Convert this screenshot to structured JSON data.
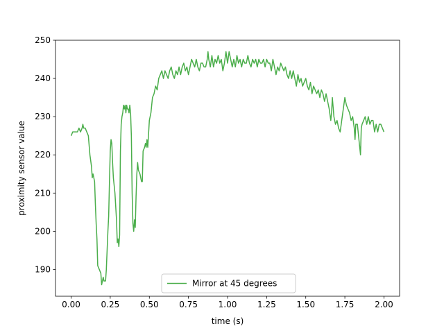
{
  "chart_data": {
    "type": "line",
    "title": "",
    "xlabel": "time (s)",
    "ylabel": "proximity sensor value",
    "xlim": [
      -0.1,
      2.1
    ],
    "ylim": [
      183,
      250
    ],
    "xticks": [
      0.0,
      0.25,
      0.5,
      0.75,
      1.0,
      1.25,
      1.5,
      1.75,
      2.0
    ],
    "xtick_labels": [
      "0.00",
      "0.25",
      "0.50",
      "0.75",
      "1.00",
      "1.25",
      "1.50",
      "1.75",
      "2.00"
    ],
    "yticks": [
      190,
      200,
      210,
      220,
      230,
      240,
      250
    ],
    "ytick_labels": [
      "190",
      "200",
      "210",
      "220",
      "230",
      "240",
      "250"
    ],
    "grid": false,
    "legend_position": "lower center",
    "series": [
      {
        "name": "Mirror at 45 degrees",
        "color": "#2ca02c",
        "points": [
          [
            0.0,
            225
          ],
          [
            0.01,
            226
          ],
          [
            0.02,
            226
          ],
          [
            0.03,
            226
          ],
          [
            0.04,
            226
          ],
          [
            0.05,
            227
          ],
          [
            0.06,
            226
          ],
          [
            0.07,
            227
          ],
          [
            0.075,
            228
          ],
          [
            0.08,
            227
          ],
          [
            0.09,
            227
          ],
          [
            0.1,
            226
          ],
          [
            0.11,
            225
          ],
          [
            0.12,
            220
          ],
          [
            0.13,
            217
          ],
          [
            0.135,
            214
          ],
          [
            0.14,
            215
          ],
          [
            0.15,
            213
          ],
          [
            0.155,
            207
          ],
          [
            0.16,
            202
          ],
          [
            0.165,
            198
          ],
          [
            0.17,
            191
          ],
          [
            0.18,
            190
          ],
          [
            0.19,
            189
          ],
          [
            0.195,
            186
          ],
          [
            0.2,
            187
          ],
          [
            0.205,
            188
          ],
          [
            0.21,
            187
          ],
          [
            0.22,
            187
          ],
          [
            0.225,
            190
          ],
          [
            0.23,
            195
          ],
          [
            0.235,
            200
          ],
          [
            0.24,
            204
          ],
          [
            0.245,
            213
          ],
          [
            0.25,
            221
          ],
          [
            0.255,
            224
          ],
          [
            0.26,
            223
          ],
          [
            0.265,
            218
          ],
          [
            0.27,
            214
          ],
          [
            0.28,
            210
          ],
          [
            0.29,
            203
          ],
          [
            0.295,
            197
          ],
          [
            0.3,
            198
          ],
          [
            0.305,
            196
          ],
          [
            0.31,
            199
          ],
          [
            0.315,
            221
          ],
          [
            0.32,
            228
          ],
          [
            0.325,
            230
          ],
          [
            0.33,
            231
          ],
          [
            0.335,
            233
          ],
          [
            0.34,
            232
          ],
          [
            0.345,
            233
          ],
          [
            0.35,
            231
          ],
          [
            0.355,
            233
          ],
          [
            0.36,
            232
          ],
          [
            0.365,
            232
          ],
          [
            0.37,
            231
          ],
          [
            0.375,
            233
          ],
          [
            0.38,
            231
          ],
          [
            0.385,
            225
          ],
          [
            0.39,
            210
          ],
          [
            0.395,
            202
          ],
          [
            0.4,
            200
          ],
          [
            0.405,
            203
          ],
          [
            0.41,
            201
          ],
          [
            0.415,
            209
          ],
          [
            0.42,
            215
          ],
          [
            0.425,
            218
          ],
          [
            0.43,
            216
          ],
          [
            0.44,
            215
          ],
          [
            0.45,
            213
          ],
          [
            0.455,
            213
          ],
          [
            0.46,
            221
          ],
          [
            0.47,
            222
          ],
          [
            0.475,
            223
          ],
          [
            0.48,
            222
          ],
          [
            0.485,
            224
          ],
          [
            0.49,
            222
          ],
          [
            0.5,
            229
          ],
          [
            0.51,
            231
          ],
          [
            0.52,
            235
          ],
          [
            0.53,
            236
          ],
          [
            0.54,
            238
          ],
          [
            0.55,
            237
          ],
          [
            0.56,
            240
          ],
          [
            0.57,
            241
          ],
          [
            0.58,
            242
          ],
          [
            0.59,
            240
          ],
          [
            0.6,
            242
          ],
          [
            0.62,
            240
          ],
          [
            0.63,
            242
          ],
          [
            0.64,
            243
          ],
          [
            0.65,
            241
          ],
          [
            0.66,
            240
          ],
          [
            0.67,
            242
          ],
          [
            0.68,
            241
          ],
          [
            0.69,
            243
          ],
          [
            0.7,
            241
          ],
          [
            0.71,
            243
          ],
          [
            0.72,
            244
          ],
          [
            0.73,
            242
          ],
          [
            0.74,
            243
          ],
          [
            0.75,
            241
          ],
          [
            0.76,
            243
          ],
          [
            0.77,
            245
          ],
          [
            0.78,
            244
          ],
          [
            0.79,
            243
          ],
          [
            0.8,
            245
          ],
          [
            0.81,
            243
          ],
          [
            0.82,
            242
          ],
          [
            0.83,
            244
          ],
          [
            0.84,
            244
          ],
          [
            0.85,
            243
          ],
          [
            0.86,
            243
          ],
          [
            0.87,
            245
          ],
          [
            0.875,
            247
          ],
          [
            0.88,
            245
          ],
          [
            0.89,
            243
          ],
          [
            0.9,
            246
          ],
          [
            0.91,
            243
          ],
          [
            0.92,
            245
          ],
          [
            0.93,
            244
          ],
          [
            0.94,
            246
          ],
          [
            0.95,
            244
          ],
          [
            0.96,
            245
          ],
          [
            0.97,
            242
          ],
          [
            0.98,
            244
          ],
          [
            0.99,
            247
          ],
          [
            1.0,
            244
          ],
          [
            1.01,
            247
          ],
          [
            1.02,
            245
          ],
          [
            1.03,
            243
          ],
          [
            1.04,
            245
          ],
          [
            1.05,
            243
          ],
          [
            1.06,
            246
          ],
          [
            1.07,
            244
          ],
          [
            1.08,
            245
          ],
          [
            1.09,
            243
          ],
          [
            1.1,
            245
          ],
          [
            1.11,
            244
          ],
          [
            1.12,
            244
          ],
          [
            1.13,
            246
          ],
          [
            1.14,
            244
          ],
          [
            1.15,
            243
          ],
          [
            1.16,
            245
          ],
          [
            1.17,
            244
          ],
          [
            1.18,
            245
          ],
          [
            1.19,
            243
          ],
          [
            1.2,
            245
          ],
          [
            1.21,
            244
          ],
          [
            1.22,
            244
          ],
          [
            1.23,
            245
          ],
          [
            1.24,
            243
          ],
          [
            1.25,
            245
          ],
          [
            1.26,
            244
          ],
          [
            1.27,
            244
          ],
          [
            1.28,
            242
          ],
          [
            1.29,
            245
          ],
          [
            1.3,
            243
          ],
          [
            1.31,
            241
          ],
          [
            1.32,
            243
          ],
          [
            1.33,
            242
          ],
          [
            1.34,
            244
          ],
          [
            1.35,
            243
          ],
          [
            1.36,
            242
          ],
          [
            1.37,
            243
          ],
          [
            1.38,
            241
          ],
          [
            1.39,
            240
          ],
          [
            1.4,
            242
          ],
          [
            1.41,
            240
          ],
          [
            1.42,
            242
          ],
          [
            1.43,
            240
          ],
          [
            1.44,
            238
          ],
          [
            1.45,
            241
          ],
          [
            1.46,
            239
          ],
          [
            1.47,
            240
          ],
          [
            1.48,
            238
          ],
          [
            1.49,
            239
          ],
          [
            1.5,
            240
          ],
          [
            1.51,
            238
          ],
          [
            1.52,
            237
          ],
          [
            1.53,
            239
          ],
          [
            1.54,
            236
          ],
          [
            1.55,
            238
          ],
          [
            1.56,
            237
          ],
          [
            1.57,
            236
          ],
          [
            1.58,
            237
          ],
          [
            1.59,
            235
          ],
          [
            1.6,
            237
          ],
          [
            1.61,
            236
          ],
          [
            1.62,
            234
          ],
          [
            1.63,
            236
          ],
          [
            1.64,
            234
          ],
          [
            1.65,
            232
          ],
          [
            1.66,
            229
          ],
          [
            1.665,
            231
          ],
          [
            1.67,
            235
          ],
          [
            1.68,
            230
          ],
          [
            1.69,
            228
          ],
          [
            1.7,
            229
          ],
          [
            1.71,
            227
          ],
          [
            1.72,
            226
          ],
          [
            1.73,
            229
          ],
          [
            1.74,
            232
          ],
          [
            1.75,
            235
          ],
          [
            1.76,
            233
          ],
          [
            1.77,
            232
          ],
          [
            1.78,
            231
          ],
          [
            1.79,
            229
          ],
          [
            1.8,
            230
          ],
          [
            1.81,
            227
          ],
          [
            1.815,
            224
          ],
          [
            1.82,
            228
          ],
          [
            1.83,
            228
          ],
          [
            1.84,
            224
          ],
          [
            1.85,
            220
          ],
          [
            1.855,
            227
          ],
          [
            1.86,
            228
          ],
          [
            1.87,
            229
          ],
          [
            1.88,
            230
          ],
          [
            1.89,
            228
          ],
          [
            1.9,
            230
          ],
          [
            1.91,
            228
          ],
          [
            1.92,
            229
          ],
          [
            1.93,
            229
          ],
          [
            1.94,
            226
          ],
          [
            1.95,
            228
          ],
          [
            1.96,
            226
          ],
          [
            1.97,
            228
          ],
          [
            1.98,
            228
          ],
          [
            1.99,
            227
          ],
          [
            2.0,
            226
          ]
        ]
      }
    ]
  }
}
